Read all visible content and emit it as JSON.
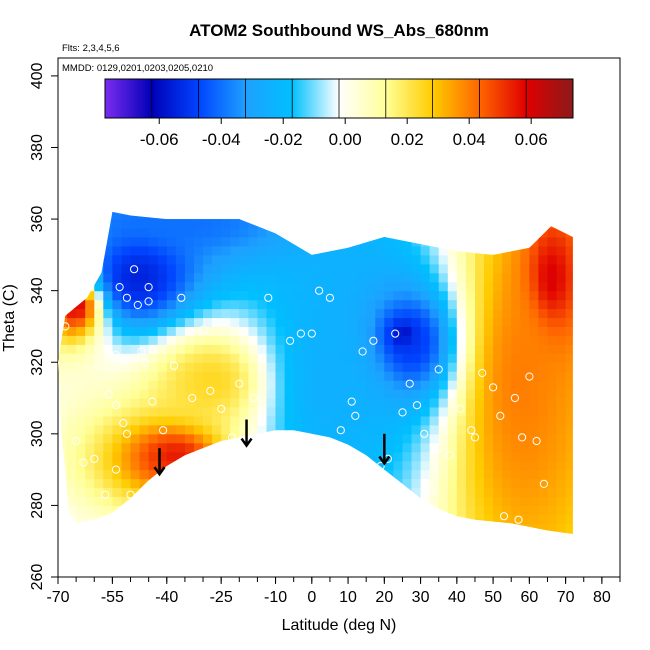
{
  "chart_data": {
    "type": "heatmap",
    "title": "ATOM2 Southbound WS_Abs_680nm",
    "annotations": [
      "Flts: 2,3,4,5,6",
      "MMDD: 0129,0201,0203,0205,0210"
    ],
    "xlabel": "Latitude (deg N)",
    "ylabel": "Theta (C)",
    "xlim": [
      -70,
      85
    ],
    "ylim": [
      260,
      405
    ],
    "x_ticks_major": [
      -70,
      -55,
      -40,
      -25,
      -10,
      0,
      10,
      20,
      30,
      40,
      50,
      60,
      70,
      80
    ],
    "x_ticks_labels": [
      "-70",
      "-55",
      "-40",
      "-25",
      "-10",
      "0",
      "10",
      "20",
      "30",
      "40",
      "50",
      "60",
      "70",
      "80"
    ],
    "y_ticks": [
      260,
      280,
      300,
      320,
      340,
      360,
      380,
      400
    ],
    "y_ticks_labels": [
      "260",
      "280",
      "300",
      "320",
      "340",
      "360",
      "380",
      "400"
    ],
    "colorbar": {
      "range": [
        -0.0775,
        0.0735
      ],
      "ticks": [
        -0.06,
        -0.04,
        -0.02,
        0.0,
        0.02,
        0.04,
        0.06
      ],
      "tick_labels": [
        "-0.06",
        "-0.04",
        "-0.02",
        "0.00",
        "0.02",
        "0.04",
        "0.06"
      ],
      "colors": [
        "#7b2cf0",
        "#0000b8",
        "#0044ff",
        "#1ea0ff",
        "#00c0ff",
        "#ffffff",
        "#ffff99",
        "#ffcc00",
        "#ff6600",
        "#e00000",
        "#8b1a1a"
      ]
    },
    "arrows_latitude": [
      -42,
      -18,
      20
    ],
    "regions": [
      {
        "name": "upper-southern-blue",
        "lat": [
          -58,
          -38
        ],
        "theta": [
          335,
          352
        ],
        "value": -0.055
      },
      {
        "name": "top-band-blue",
        "lat": [
          -55,
          -15
        ],
        "theta": [
          355,
          362
        ],
        "value": -0.04
      },
      {
        "name": "mid-tropics-blue",
        "lat": [
          -10,
          20
        ],
        "theta": [
          285,
          345
        ],
        "value": -0.025
      },
      {
        "name": "north-mid-blue",
        "lat": [
          20,
          35
        ],
        "theta": [
          315,
          335
        ],
        "value": -0.05
      },
      {
        "name": "yellow-subtropical-south",
        "lat": [
          -40,
          -15
        ],
        "theta": [
          305,
          325
        ],
        "value": 0.025
      },
      {
        "name": "red-lowstrat-south",
        "lat": [
          -45,
          -30
        ],
        "theta": [
          290,
          298
        ],
        "value": 0.055
      },
      {
        "name": "north-orange",
        "lat": [
          45,
          70
        ],
        "theta": [
          275,
          355
        ],
        "value": 0.04
      },
      {
        "name": "north-red-top",
        "lat": [
          62,
          70
        ],
        "theta": [
          330,
          357
        ],
        "value": 0.06
      },
      {
        "name": "west-red-edge",
        "lat": [
          -68,
          -62
        ],
        "theta": [
          332,
          340
        ],
        "value": 0.06
      },
      {
        "name": "deep-blue-north-spot",
        "lat": [
          23,
          28
        ],
        "theta": [
          325,
          330
        ],
        "value": -0.065
      }
    ],
    "observations": [
      [
        -68,
        330
      ],
      [
        -65,
        298
      ],
      [
        -63,
        292
      ],
      [
        -60,
        293
      ],
      [
        -56,
        323
      ],
      [
        -54,
        322
      ],
      [
        -57,
        283
      ],
      [
        -54,
        290
      ],
      [
        -52,
        320
      ],
      [
        -56,
        311
      ],
      [
        -54,
        308
      ],
      [
        -51,
        300
      ],
      [
        -52,
        303
      ],
      [
        -51,
        338
      ],
      [
        -48,
        336
      ],
      [
        -45,
        337
      ],
      [
        -47,
        323
      ],
      [
        -46,
        320
      ],
      [
        -44,
        309
      ],
      [
        -38,
        319
      ],
      [
        -36,
        338
      ],
      [
        -30,
        329
      ],
      [
        -28,
        312
      ],
      [
        -25,
        307
      ],
      [
        -22,
        299
      ],
      [
        -20,
        314
      ],
      [
        -16,
        310
      ],
      [
        -12,
        338
      ],
      [
        -6,
        326
      ],
      [
        -3,
        328
      ],
      [
        0,
        328
      ],
      [
        2,
        340
      ],
      [
        5,
        338
      ],
      [
        8,
        301
      ],
      [
        11,
        309
      ],
      [
        14,
        323
      ],
      [
        17,
        326
      ],
      [
        19,
        291
      ],
      [
        21,
        293
      ],
      [
        23,
        328
      ],
      [
        25,
        306
      ],
      [
        27,
        314
      ],
      [
        29,
        308
      ],
      [
        31,
        300
      ],
      [
        33,
        284
      ],
      [
        35,
        296
      ],
      [
        38,
        294
      ],
      [
        41,
        307
      ],
      [
        44,
        301
      ],
      [
        47,
        317
      ],
      [
        50,
        313
      ],
      [
        53,
        277
      ],
      [
        57,
        276
      ],
      [
        60,
        316
      ],
      [
        62,
        298
      ],
      [
        58,
        299
      ],
      [
        56,
        310
      ],
      [
        -53,
        341
      ],
      [
        -49,
        346
      ],
      [
        -45,
        341
      ],
      [
        -58,
        272
      ],
      [
        -50,
        283
      ],
      [
        -41,
        301
      ],
      [
        -33,
        310
      ],
      [
        -5,
        297
      ],
      [
        12,
        305
      ],
      [
        35,
        318
      ],
      [
        45,
        299
      ],
      [
        52,
        305
      ],
      [
        64,
        286
      ]
    ]
  }
}
